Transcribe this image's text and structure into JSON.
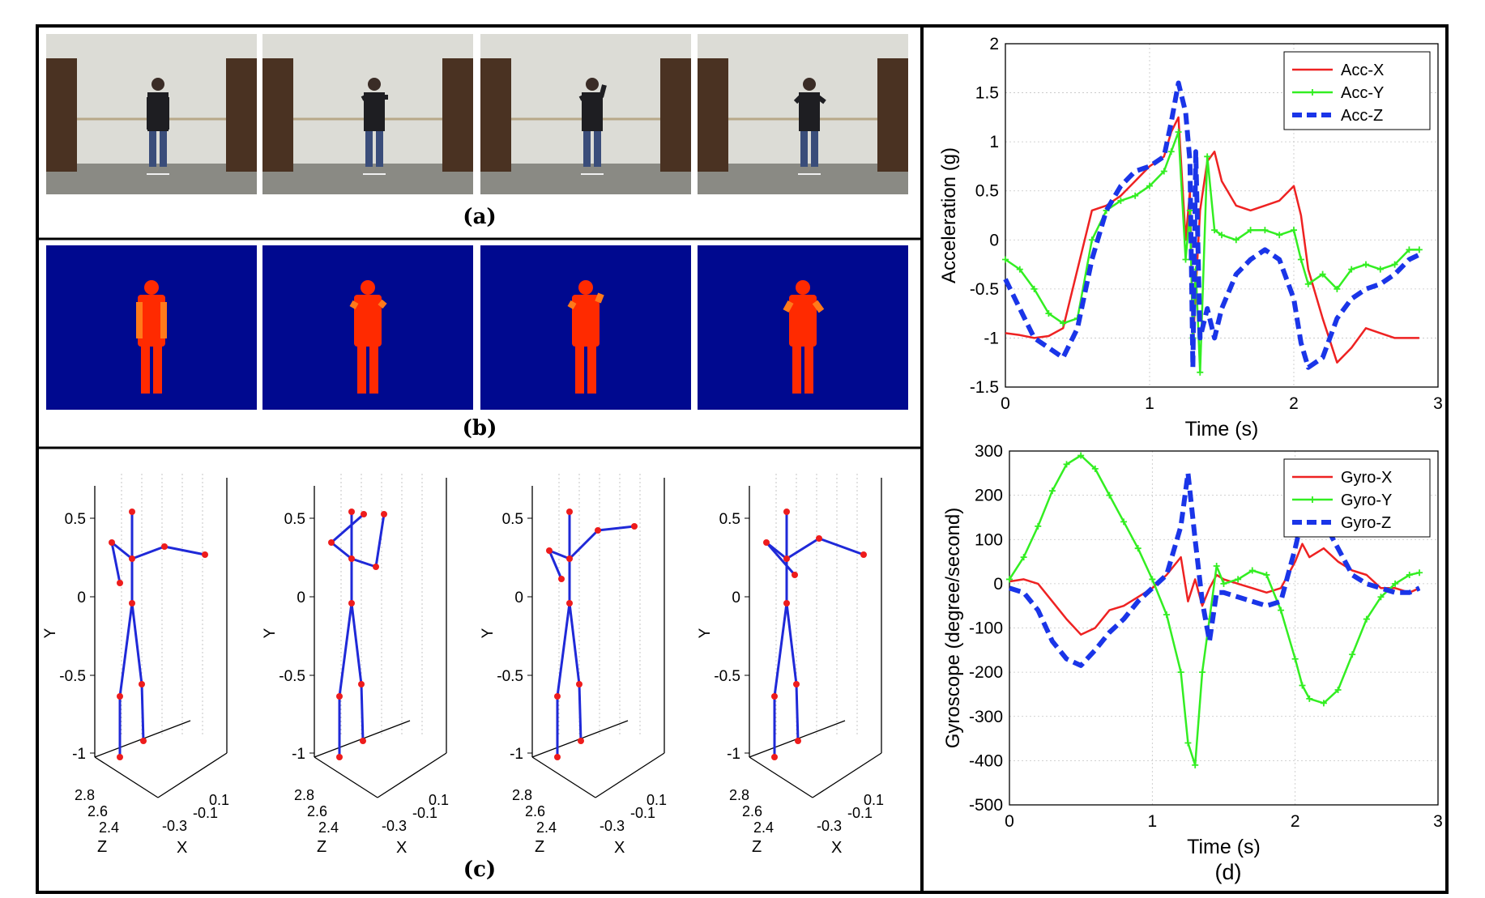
{
  "panel_labels": [
    "(a)",
    "(b)",
    "(c)",
    "(d)"
  ],
  "colors": {
    "depth_background": "#00098f",
    "depth_body": "#ff2a00",
    "depth_body_near": "#ff7a1a",
    "skeleton_bone": "#1f29d8",
    "skeleton_joint": "#ee1c1c",
    "acc_x": "#ee2222",
    "acc_y": "#33ee22",
    "acc_z": "#1a35e8",
    "room_wall": "#dcdcd6",
    "room_floor": "#8a8a84",
    "shelf": "#4a3222"
  },
  "skeleton_axes": {
    "y_label": "Y",
    "x_label": "X",
    "z_label": "Z",
    "y_ticks": [
      "0.5",
      "0",
      "-0.5",
      "-1"
    ],
    "z_ticks": [
      "2.8",
      "2.6",
      "2.4"
    ],
    "x_ticks": [
      "-0.3",
      "-0.1",
      "0.1"
    ]
  },
  "chart_data": [
    {
      "type": "line",
      "title": "",
      "xlabel": "Time (s)",
      "ylabel": "Acceleration (g)",
      "xlim": [
        0,
        3
      ],
      "ylim": [
        -1.5,
        2
      ],
      "xticks": [
        "0",
        "1",
        "2",
        "3"
      ],
      "yticks": [
        "2",
        "1.5",
        "1",
        "0.5",
        "0",
        "-0.5",
        "-1",
        "-1.5"
      ],
      "grid": true,
      "legend": "top-right",
      "series": [
        {
          "name": "Acc-X",
          "color": "#ee2222",
          "style": "solid",
          "marker": "none",
          "x": [
            0,
            0.1,
            0.2,
            0.3,
            0.4,
            0.5,
            0.6,
            0.7,
            0.8,
            0.9,
            1.0,
            1.1,
            1.15,
            1.2,
            1.25,
            1.28,
            1.3,
            1.32,
            1.35,
            1.4,
            1.45,
            1.5,
            1.6,
            1.7,
            1.8,
            1.9,
            2.0,
            2.05,
            2.1,
            2.2,
            2.3,
            2.4,
            2.5,
            2.6,
            2.7,
            2.8,
            2.87
          ],
          "y": [
            -0.95,
            -0.97,
            -1.0,
            -0.98,
            -0.9,
            -0.3,
            0.3,
            0.35,
            0.45,
            0.6,
            0.75,
            0.85,
            1.1,
            1.25,
            0.0,
            0.5,
            -1.1,
            -0.5,
            0.3,
            0.8,
            0.9,
            0.6,
            0.35,
            0.3,
            0.35,
            0.4,
            0.55,
            0.25,
            -0.3,
            -0.8,
            -1.25,
            -1.1,
            -0.9,
            -0.95,
            -1.0,
            -1.0,
            -1.0
          ]
        },
        {
          "name": "Acc-Y",
          "color": "#33ee22",
          "style": "solid",
          "marker": "plus",
          "x": [
            0,
            0.1,
            0.2,
            0.3,
            0.4,
            0.5,
            0.6,
            0.7,
            0.8,
            0.9,
            1.0,
            1.1,
            1.15,
            1.2,
            1.25,
            1.28,
            1.3,
            1.32,
            1.35,
            1.4,
            1.45,
            1.5,
            1.6,
            1.7,
            1.8,
            1.9,
            2.0,
            2.05,
            2.1,
            2.2,
            2.3,
            2.4,
            2.5,
            2.6,
            2.7,
            2.8,
            2.87
          ],
          "y": [
            -0.2,
            -0.3,
            -0.5,
            -0.75,
            -0.85,
            -0.8,
            0.0,
            0.3,
            0.4,
            0.45,
            0.55,
            0.7,
            0.9,
            1.1,
            -0.2,
            0.3,
            -1.0,
            -0.3,
            -1.35,
            0.85,
            0.1,
            0.05,
            0.0,
            0.1,
            0.1,
            0.05,
            0.1,
            -0.2,
            -0.45,
            -0.35,
            -0.5,
            -0.3,
            -0.25,
            -0.3,
            -0.25,
            -0.1,
            -0.1
          ]
        },
        {
          "name": "Acc-Z",
          "color": "#1a35e8",
          "style": "dashed",
          "marker": "none",
          "x": [
            0,
            0.1,
            0.2,
            0.3,
            0.4,
            0.5,
            0.6,
            0.7,
            0.8,
            0.9,
            1.0,
            1.1,
            1.15,
            1.2,
            1.25,
            1.28,
            1.3,
            1.32,
            1.35,
            1.4,
            1.45,
            1.5,
            1.6,
            1.7,
            1.8,
            1.9,
            2.0,
            2.05,
            2.1,
            2.2,
            2.3,
            2.4,
            2.5,
            2.6,
            2.7,
            2.8,
            2.87
          ],
          "y": [
            -0.4,
            -0.7,
            -1.0,
            -1.1,
            -1.2,
            -0.9,
            -0.2,
            0.3,
            0.55,
            0.7,
            0.75,
            0.85,
            1.2,
            1.6,
            1.3,
            0.8,
            -1.3,
            0.9,
            -1.0,
            -0.7,
            -1.0,
            -0.7,
            -0.35,
            -0.2,
            -0.1,
            -0.2,
            -0.6,
            -1.05,
            -1.3,
            -1.2,
            -0.8,
            -0.6,
            -0.5,
            -0.45,
            -0.35,
            -0.2,
            -0.15
          ]
        }
      ]
    },
    {
      "type": "line",
      "title": "",
      "xlabel": "Time (s)",
      "ylabel": "Gyroscope (degree/second)",
      "xlim": [
        0,
        3
      ],
      "ylim": [
        -500,
        300
      ],
      "xticks": [
        "0",
        "1",
        "2",
        "3"
      ],
      "yticks": [
        "300",
        "200",
        "100",
        "0",
        "-100",
        "-200",
        "-300",
        "-400",
        "-500"
      ],
      "grid": true,
      "legend": "top-right",
      "series": [
        {
          "name": "Gyro-X",
          "color": "#ee2222",
          "style": "solid",
          "marker": "none",
          "x": [
            0,
            0.1,
            0.2,
            0.3,
            0.4,
            0.5,
            0.6,
            0.7,
            0.8,
            0.9,
            1.0,
            1.1,
            1.2,
            1.25,
            1.3,
            1.35,
            1.4,
            1.45,
            1.5,
            1.6,
            1.7,
            1.8,
            1.9,
            2.0,
            2.05,
            2.1,
            2.2,
            2.3,
            2.4,
            2.5,
            2.6,
            2.7,
            2.8,
            2.87
          ],
          "y": [
            5,
            10,
            0,
            -40,
            -80,
            -115,
            -100,
            -60,
            -50,
            -30,
            -10,
            20,
            60,
            -40,
            10,
            -50,
            -10,
            20,
            10,
            0,
            -10,
            -20,
            -10,
            50,
            90,
            60,
            80,
            50,
            30,
            20,
            -10,
            -10,
            -20,
            -10
          ]
        },
        {
          "name": "Gyro-Y",
          "color": "#33ee22",
          "style": "solid",
          "marker": "plus",
          "x": [
            0,
            0.1,
            0.2,
            0.3,
            0.4,
            0.5,
            0.6,
            0.7,
            0.8,
            0.9,
            1.0,
            1.1,
            1.2,
            1.25,
            1.3,
            1.35,
            1.4,
            1.45,
            1.5,
            1.6,
            1.7,
            1.8,
            1.9,
            2.0,
            2.05,
            2.1,
            2.2,
            2.3,
            2.4,
            2.5,
            2.6,
            2.7,
            2.8,
            2.87
          ],
          "y": [
            10,
            60,
            130,
            210,
            270,
            290,
            260,
            200,
            140,
            80,
            10,
            -70,
            -200,
            -360,
            -410,
            -200,
            -80,
            40,
            0,
            10,
            30,
            20,
            -60,
            -170,
            -230,
            -260,
            -270,
            -240,
            -160,
            -80,
            -30,
            0,
            20,
            25
          ]
        },
        {
          "name": "Gyro-Z",
          "color": "#1a35e8",
          "style": "dashed",
          "marker": "none",
          "x": [
            0,
            0.1,
            0.2,
            0.3,
            0.4,
            0.5,
            0.6,
            0.7,
            0.8,
            0.9,
            1.0,
            1.1,
            1.2,
            1.25,
            1.3,
            1.35,
            1.4,
            1.45,
            1.5,
            1.6,
            1.7,
            1.8,
            1.9,
            2.0,
            2.05,
            2.1,
            2.2,
            2.3,
            2.4,
            2.5,
            2.6,
            2.7,
            2.8,
            2.87
          ],
          "y": [
            -10,
            -20,
            -60,
            -130,
            -170,
            -185,
            -150,
            -110,
            -80,
            -40,
            -10,
            20,
            130,
            250,
            100,
            -40,
            -130,
            -20,
            -20,
            -30,
            -40,
            -50,
            -40,
            80,
            150,
            130,
            140,
            80,
            20,
            0,
            -10,
            -20,
            -20,
            -10
          ]
        }
      ]
    }
  ]
}
